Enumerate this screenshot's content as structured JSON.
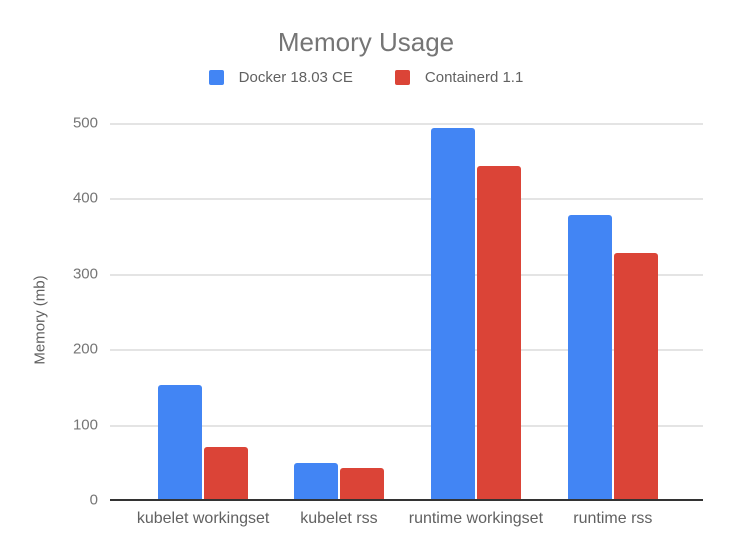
{
  "chart_data": {
    "type": "bar",
    "title": "Memory Usage",
    "xlabel": "",
    "ylabel": "Memory (mb)",
    "categories": [
      "kubelet workingset",
      "kubelet rss",
      "runtime workingset",
      "runtime rss"
    ],
    "series": [
      {
        "name": "Docker 18.03 CE",
        "color": "#4285f4",
        "values": [
          152,
          49,
          493,
          378
        ]
      },
      {
        "name": "Containerd 1.1",
        "color": "#db4437",
        "values": [
          70,
          43,
          443,
          328
        ]
      }
    ],
    "y_ticks": [
      0,
      100,
      200,
      300,
      400,
      500
    ],
    "ylim": [
      0,
      500
    ],
    "grid": true,
    "legend_position": "top",
    "axis_color": "#333333",
    "gridline_color": "#e4e4e4"
  }
}
